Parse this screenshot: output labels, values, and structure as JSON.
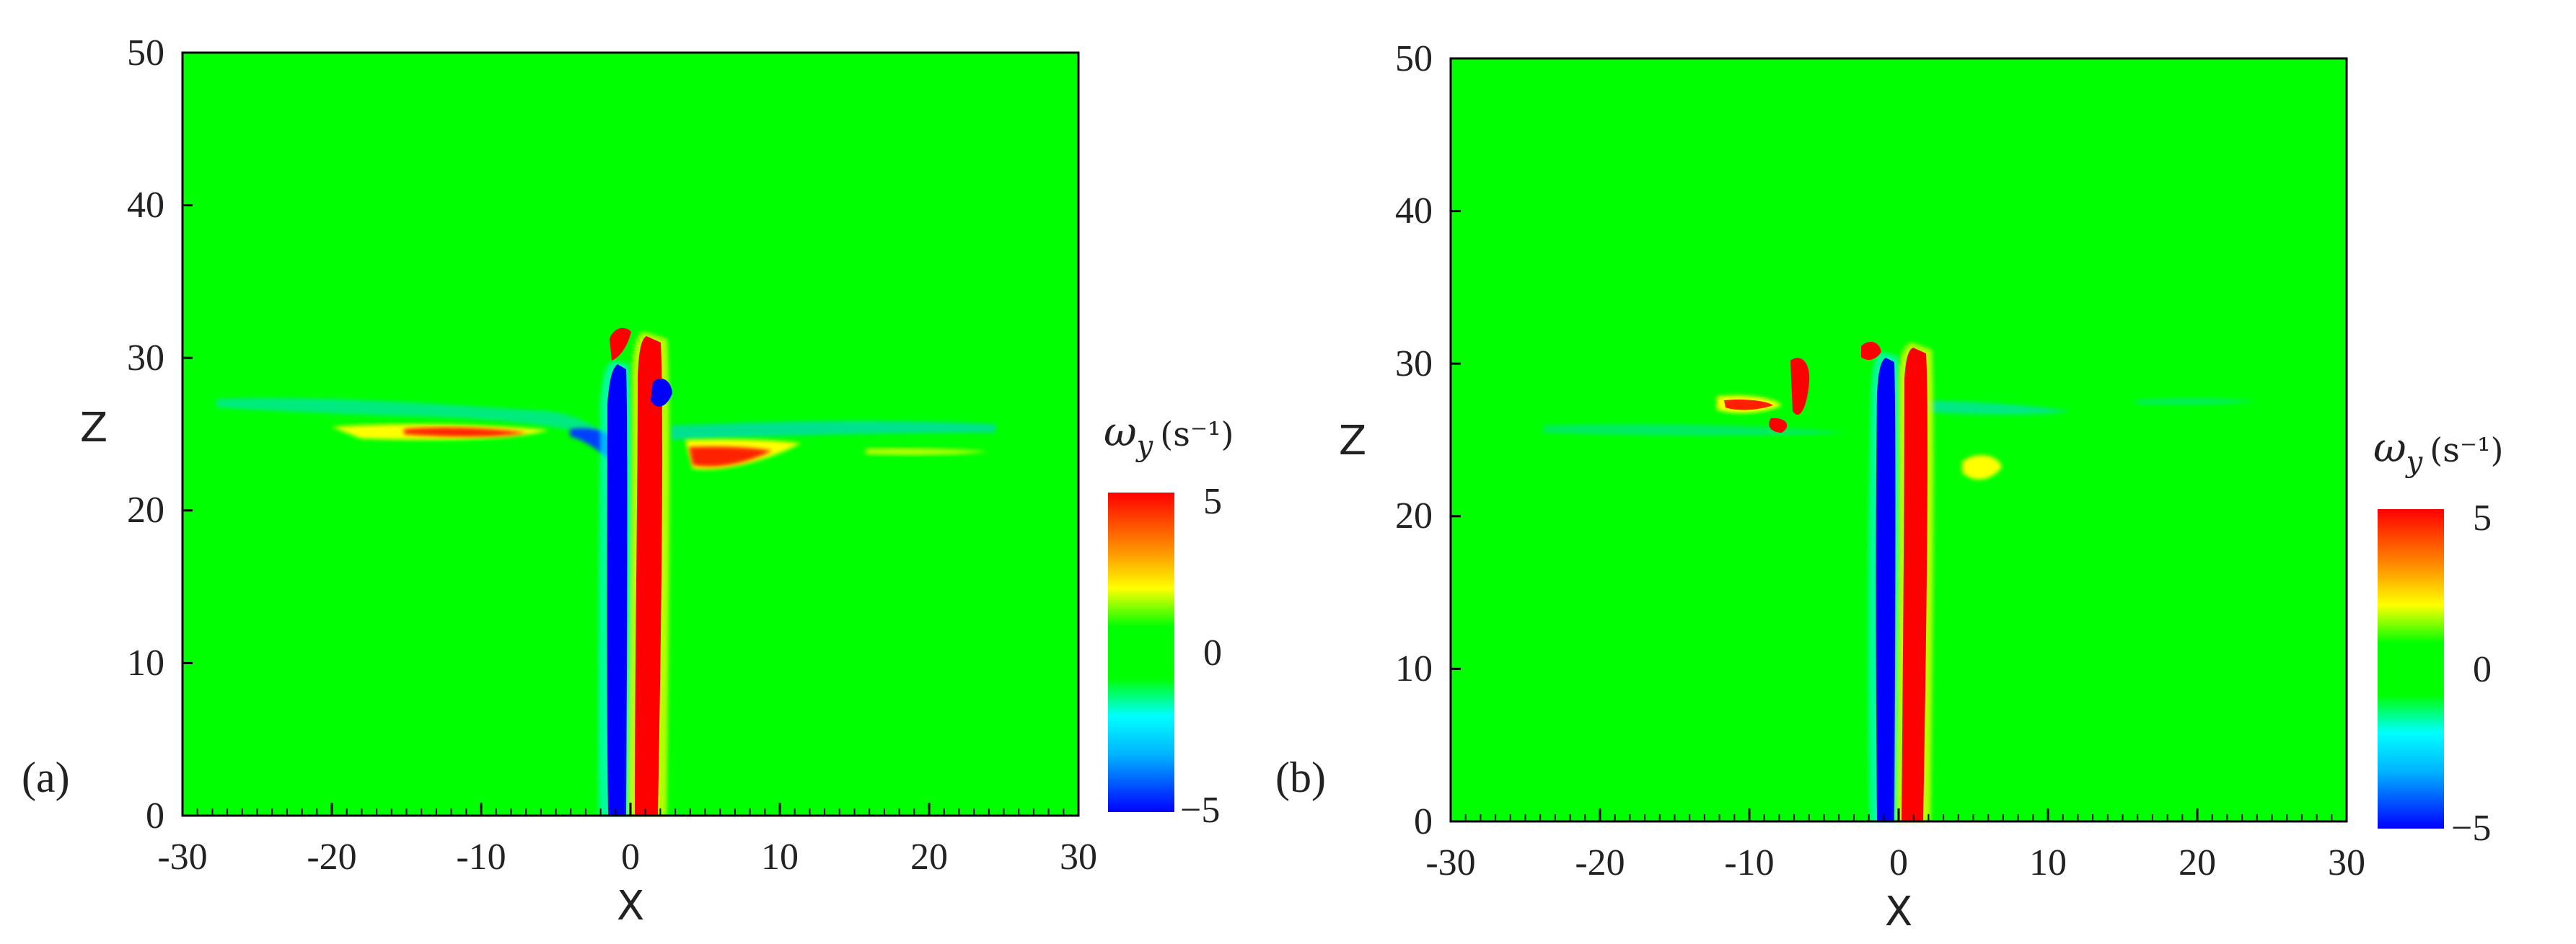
{
  "chart_data": [
    {
      "type": "heatmap",
      "panel_label": "(a)",
      "xlabel": "X",
      "ylabel": "Z",
      "xlim": [
        -30,
        30
      ],
      "ylim": [
        0,
        50
      ],
      "xticks": [
        "-30",
        "-20",
        "-10",
        "0",
        "10",
        "20",
        "30"
      ],
      "yticks": [
        "0",
        "10",
        "20",
        "30",
        "40",
        "50"
      ],
      "colorbar": {
        "title": "ω",
        "subscript": "y",
        "unit": "(s⁻¹)",
        "ticks": [
          "5",
          "0",
          "−5"
        ],
        "range": [
          -5,
          5
        ],
        "colors": [
          "#0000ff",
          "#00ffff",
          "#00ff00",
          "#00ff00",
          "#ffff00",
          "#ff0000"
        ]
      },
      "features": [
        {
          "name": "negative-core",
          "x": [
            -1.3,
            -0.1
          ],
          "z": [
            0,
            30
          ],
          "value": -5
        },
        {
          "name": "positive-core",
          "x": [
            0.3,
            2.6
          ],
          "z": [
            0,
            31
          ],
          "value": 5
        },
        {
          "name": "shear-layer-left",
          "x": [
            -25,
            -3
          ],
          "z": [
            23,
            26
          ],
          "value": 2
        },
        {
          "name": "shear-layer-right",
          "x": [
            3,
            25
          ],
          "z": [
            23,
            26
          ],
          "value": -2
        }
      ]
    },
    {
      "type": "heatmap",
      "panel_label": "(b)",
      "xlabel": "X",
      "ylabel": "Z",
      "xlim": [
        -30,
        30
      ],
      "ylim": [
        0,
        50
      ],
      "xticks": [
        "-30",
        "-20",
        "-10",
        "0",
        "10",
        "20",
        "30"
      ],
      "yticks": [
        "0",
        "10",
        "20",
        "30",
        "40",
        "50"
      ],
      "colorbar": {
        "title": "ω",
        "subscript": "y",
        "unit": "(s⁻¹)",
        "ticks": [
          "5",
          "0",
          "−5"
        ],
        "range": [
          -5,
          5
        ],
        "colors": [
          "#0000ff",
          "#00ffff",
          "#00ff00",
          "#00ff00",
          "#ffff00",
          "#ff0000"
        ]
      },
      "features": [
        {
          "name": "negative-core",
          "x": [
            -1.2,
            -0.1
          ],
          "z": [
            0,
            29
          ],
          "value": -5
        },
        {
          "name": "positive-core",
          "x": [
            0.3,
            2.3
          ],
          "z": [
            0,
            30
          ],
          "value": 5
        },
        {
          "name": "shear-layer-left",
          "x": [
            -22,
            -2
          ],
          "z": [
            22,
            25
          ],
          "value": 1
        },
        {
          "name": "shear-layer-right",
          "x": [
            2,
            24
          ],
          "z": [
            23,
            26
          ],
          "value": -1
        }
      ]
    }
  ]
}
